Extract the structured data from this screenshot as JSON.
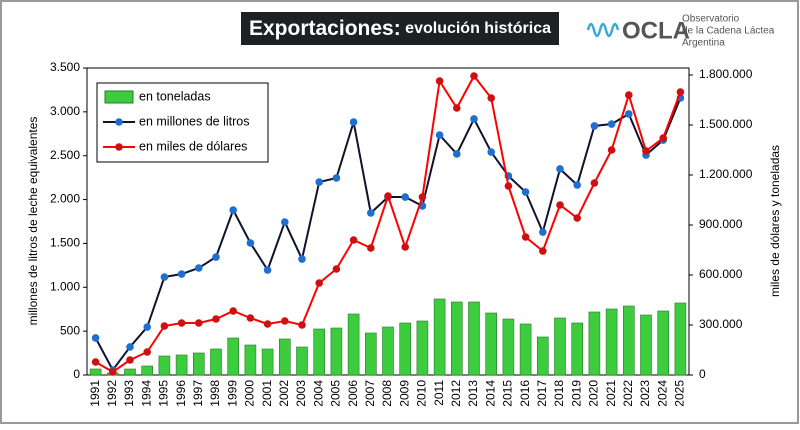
{
  "chart_data": {
    "type": "combo",
    "title": "Exportaciones:",
    "subtitle": "evolución histórica",
    "logo": {
      "name": "OCLA",
      "lines": [
        "Observatorio",
        "de la Cadena Láctea",
        "Argentina"
      ]
    },
    "ylabel": "millones de litros de leche equivalentes",
    "y2label": "miles de dólares y toneladas",
    "legend": "upper left",
    "grid": false,
    "categories": [
      "1991",
      "1992",
      "1993",
      "1994",
      "1995",
      "1996",
      "1997",
      "1998",
      "1999",
      "2000",
      "2001",
      "2002",
      "2003",
      "2004",
      "2005",
      "2006",
      "2007",
      "2008",
      "2009",
      "2010",
      "2011",
      "2012",
      "2013",
      "2014",
      "2015",
      "2016",
      "2017",
      "2018",
      "2019",
      "2020",
      "2021",
      "2022",
      "2023",
      "2024",
      "2025"
    ],
    "ylim": [
      0,
      3500
    ],
    "yticks": [
      0,
      500,
      {
        "value": 1000,
        "label": "1.000"
      },
      {
        "value": 1500,
        "label": "1.500"
      },
      {
        "value": 2000,
        "label": "2.000"
      },
      {
        "value": 2500,
        "label": "2.500"
      },
      {
        "value": 3000,
        "label": "3.000"
      },
      {
        "value": 3500,
        "label": "3.500"
      }
    ],
    "y2lim": [
      0,
      1842000
    ],
    "y2ticks": [
      0,
      {
        "value": 300000,
        "label": "300.000"
      },
      {
        "value": 600000,
        "label": "600.000"
      },
      {
        "value": 900000,
        "label": "900.000"
      },
      {
        "value": 1200000,
        "label": "1.200.000"
      },
      {
        "value": 1500000,
        "label": "1.500.000"
      },
      {
        "value": 1800000,
        "label": "1.800.000"
      }
    ],
    "series": [
      {
        "name": "en toneladas",
        "type": "bar",
        "axis": "y2",
        "color": "#3dcc3d",
        "values": [
          36000,
          12000,
          36000,
          54000,
          114000,
          120000,
          132000,
          156000,
          222000,
          180000,
          156000,
          216000,
          168000,
          276000,
          282000,
          366000,
          252000,
          288000,
          312000,
          324000,
          456000,
          438000,
          438000,
          372000,
          336000,
          306000,
          228000,
          342000,
          312000,
          378000,
          396000,
          414000,
          360000,
          384000,
          432000
        ]
      },
      {
        "name": "en millones de litros",
        "type": "line",
        "color": "#1f6fd0",
        "line_color": "#10122e",
        "values": [
          422,
          57,
          320,
          547,
          1117,
          1151,
          1220,
          1345,
          1881,
          1505,
          1197,
          1744,
          1322,
          2200,
          2246,
          2884,
          1847,
          2029,
          2029,
          1927,
          2736,
          2520,
          2919,
          2542,
          2269,
          2086,
          1630,
          2349,
          2166,
          2839,
          2861,
          2976,
          2508,
          2679,
          3158
        ]
      },
      {
        "name": "en miles de dólares",
        "type": "line",
        "axis": "y2",
        "color": "#d01010",
        "line_color": "#ff0000",
        "values": [
          78000,
          18000,
          90000,
          138000,
          294000,
          312000,
          312000,
          336000,
          384000,
          342000,
          306000,
          324000,
          300000,
          552000,
          636000,
          810000,
          762000,
          1074000,
          768000,
          1068000,
          1764000,
          1602000,
          1794000,
          1662000,
          1134000,
          828000,
          744000,
          1020000,
          942000,
          1152000,
          1350000,
          1680000,
          1344000,
          1422000,
          1698000
        ]
      }
    ]
  }
}
